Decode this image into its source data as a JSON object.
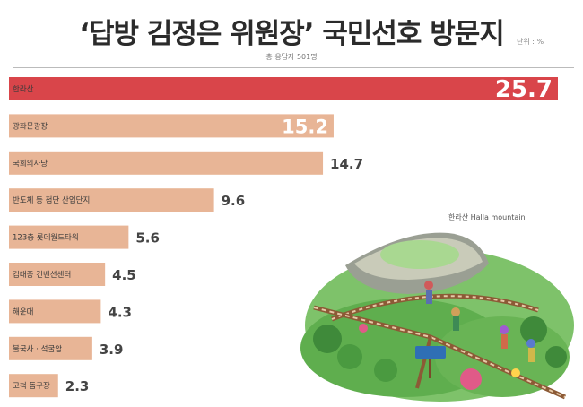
{
  "header": {
    "title": "‘답방 김정은 위원장’ 국민선호 방문지",
    "unit": "단위 : %",
    "respondents": "총 응답자 501명"
  },
  "illustration": {
    "caption": "한라산 Halla mountain"
  },
  "colors": {
    "highlight_bar": "#d9454a",
    "bar": "#e8b596",
    "value_text": "#444444",
    "highlight_value_text": "#ffffff"
  },
  "chart_data": {
    "type": "bar",
    "orientation": "horizontal",
    "title": "‘답방 김정은 위원장’ 국민선호 방문지",
    "categories": [
      "한라산",
      "광화문광장",
      "국회의사당",
      "반도체 등 첨단 산업단지",
      "123층 롯데월드타워",
      "김대중 컨벤션센터",
      "해운대",
      "불국사 · 석굴암",
      "고척 돔구장"
    ],
    "values": [
      25.7,
      15.2,
      14.7,
      9.6,
      5.6,
      4.5,
      4.3,
      3.9,
      2.3
    ],
    "value_labels": [
      "25.7",
      "15.2",
      "14.7",
      "9.6",
      "5.6",
      "4.5",
      "4.3",
      "3.9",
      "2.3"
    ],
    "unit": "%",
    "highlight_index": 0,
    "xlim": [
      0,
      25.7
    ]
  }
}
